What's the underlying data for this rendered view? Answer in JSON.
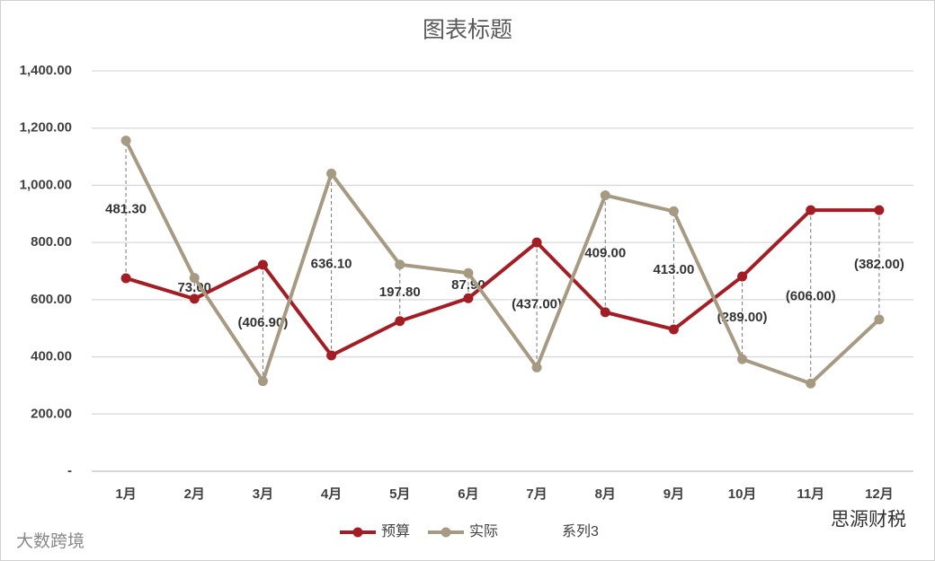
{
  "chart_data": {
    "type": "line",
    "title": "图表标题",
    "categories": [
      "1月",
      "2月",
      "3月",
      "4月",
      "5月",
      "6月",
      "7月",
      "8月",
      "9月",
      "10月",
      "11月",
      "12月"
    ],
    "series": [
      {
        "name": "预算",
        "color": "#a31d24",
        "values": [
          675,
          603,
          722,
          405,
          525,
          605,
          800,
          556,
          496,
          681,
          913,
          913
        ]
      },
      {
        "name": "实际",
        "color": "#a69a83",
        "values": [
          1156.3,
          676,
          315.1,
          1041.1,
          722.8,
          692.9,
          363,
          965,
          909,
          392,
          307,
          531
        ]
      },
      {
        "name": "系列3",
        "values": [
          481.3,
          73,
          -406.9,
          636.1,
          197.8,
          87.9,
          -437,
          409,
          413,
          -289,
          -606,
          -382
        ],
        "value_labels": [
          "481.30",
          "73.00",
          "(406.90)",
          "636.10",
          "197.80",
          "87.90",
          "(437.00)",
          "409.00",
          "413.00",
          "(289.00)",
          "(606.00)",
          "(382.00)"
        ]
      }
    ],
    "ylim": [
      0,
      1400
    ],
    "yticks": [
      {
        "value": 0,
        "label": "-"
      },
      {
        "value": 200,
        "label": "200.00"
      },
      {
        "value": 400,
        "label": "400.00"
      },
      {
        "value": 600,
        "label": "600.00"
      },
      {
        "value": 800,
        "label": "800.00"
      },
      {
        "value": 1000,
        "label": "1,000.00"
      },
      {
        "value": 1200,
        "label": "1,200.00"
      },
      {
        "value": 1400,
        "label": "1,400.00"
      }
    ],
    "grid": true,
    "legend": "bottom"
  },
  "watermarks": [
    "大数跨境",
    "思源财税"
  ]
}
